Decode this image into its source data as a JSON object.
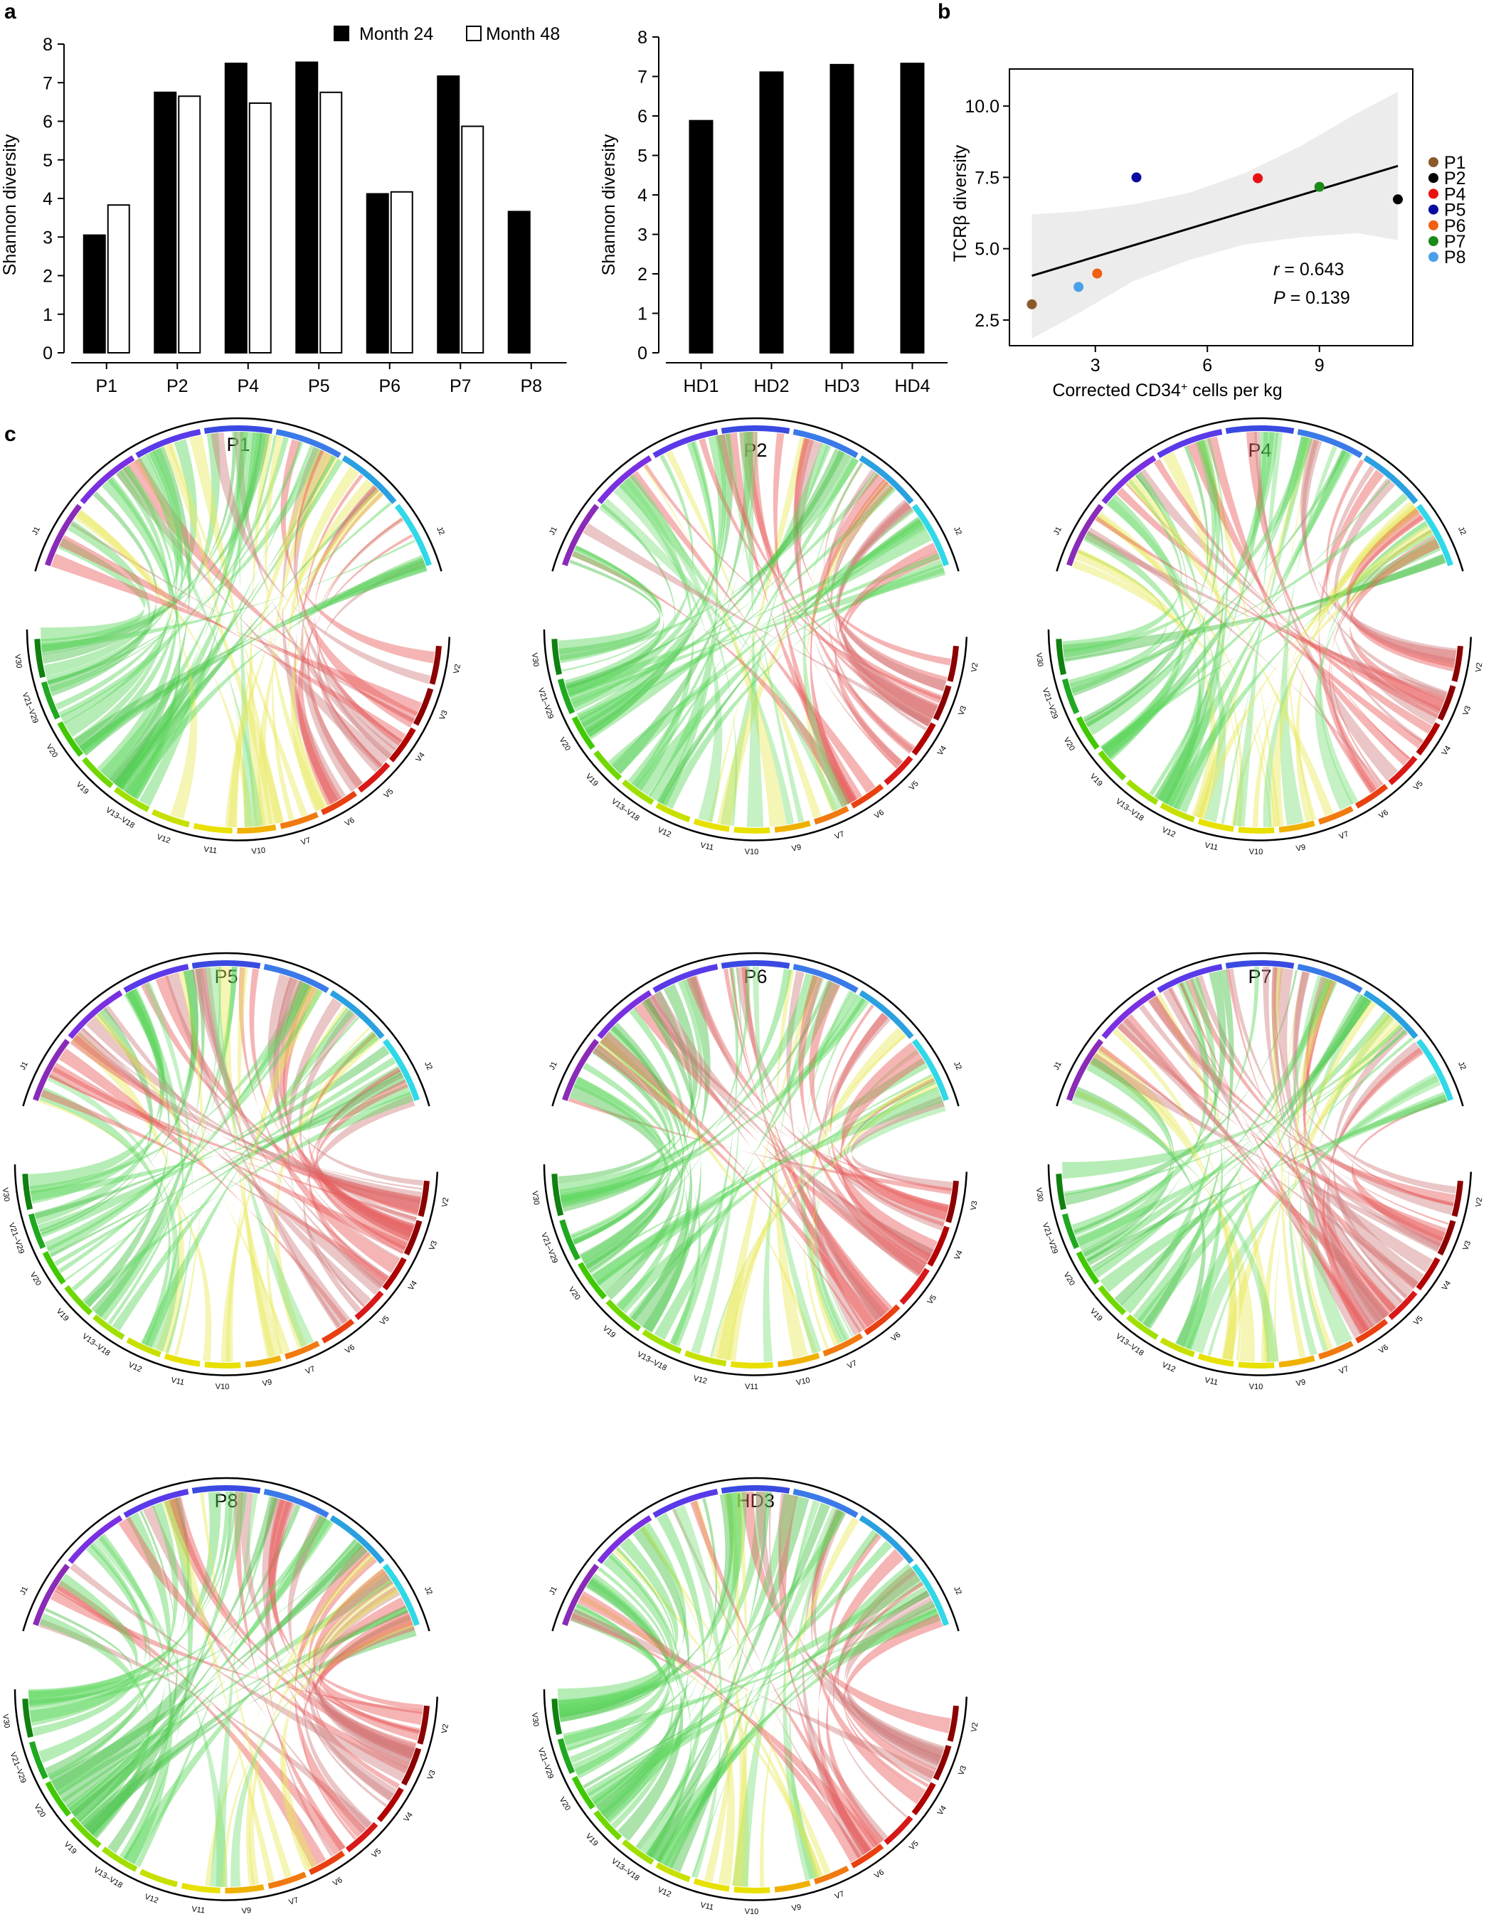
{
  "panel_labels": {
    "a": "a",
    "b": "b",
    "c": "c"
  },
  "colors": {
    "month24": "#000000",
    "month48": "#ffffff",
    "ribbon_palette": [
      "#5ed65e",
      "#7fe07f",
      "#e85a5a",
      "#f08070",
      "#e8e85a",
      "#f5c45a",
      "#44c044",
      "#d08080"
    ],
    "j_segments": [
      "#8a2bb8",
      "#7a30e0",
      "#5a3ae8",
      "#3a4ae0",
      "#3a7ae8",
      "#2aa0e0",
      "#30d8e8"
    ],
    "v_segments": [
      "#8b0000",
      "#b00000",
      "#d81818",
      "#e84010",
      "#f07a10",
      "#f0b000",
      "#e8e000",
      "#c8e000",
      "#a0e000",
      "#70d800",
      "#40c800",
      "#20a820",
      "#108010"
    ],
    "scatter": {
      "P1": "#8b5a2b",
      "P2": "#000000",
      "P4": "#e81010",
      "P5": "#0a0aa0",
      "P6": "#f06010",
      "P7": "#1a8a1a",
      "P8": "#4aa0e8"
    }
  },
  "chart_data": [
    {
      "id": "a-left",
      "type": "bar",
      "title": "",
      "xlabel": "",
      "ylabel": "Shannon diversity",
      "ylim": [
        0,
        8
      ],
      "yticks": [
        "0",
        "1",
        "2",
        "3",
        "4",
        "5",
        "6",
        "7",
        "8"
      ],
      "categories": [
        "P1",
        "P2",
        "P4",
        "P5",
        "P6",
        "P7",
        "P8"
      ],
      "legend": {
        "placement": "top-right"
      },
      "series": [
        {
          "name": "Month 24",
          "values": [
            3.05,
            6.75,
            7.5,
            7.53,
            4.12,
            7.17,
            3.66
          ]
        },
        {
          "name": "Month 48",
          "values": [
            3.83,
            6.65,
            6.47,
            6.75,
            4.17,
            5.87,
            null
          ]
        }
      ]
    },
    {
      "id": "a-right",
      "type": "bar",
      "title": "",
      "xlabel": "",
      "ylabel": "Shannon diversity",
      "ylim": [
        0,
        8
      ],
      "yticks": [
        "0",
        "1",
        "2",
        "3",
        "4",
        "5",
        "6",
        "7",
        "8"
      ],
      "categories": [
        "HD1",
        "HD2",
        "HD3",
        "HD4"
      ],
      "series": [
        {
          "name": "Month 24",
          "values": [
            5.88,
            7.11,
            7.3,
            7.33
          ]
        }
      ]
    },
    {
      "id": "b",
      "type": "scatter",
      "title": "",
      "xlabel_main": "Corrected CD34",
      "xlabel_sup": "+",
      "xlabel_rest": " cells per kg",
      "ylabel": "TCRβ diversity",
      "xlim": [
        0.7,
        11.5
      ],
      "ylim": [
        1.6,
        11.3
      ],
      "xticks": [
        {
          "v": 3,
          "label": "3"
        },
        {
          "v": 6,
          "label": "6"
        },
        {
          "v": 9,
          "label": "9"
        }
      ],
      "yticks": [
        {
          "v": 2.5,
          "label": "2.5"
        },
        {
          "v": 5.0,
          "label": "5.0"
        },
        {
          "v": 7.5,
          "label": "7.5"
        },
        {
          "v": 10.0,
          "label": "10.0"
        }
      ],
      "points": [
        {
          "name": "P1",
          "x": 1.3,
          "y": 3.05
        },
        {
          "name": "P2",
          "x": 11.1,
          "y": 6.73
        },
        {
          "name": "P4",
          "x": 7.35,
          "y": 7.47
        },
        {
          "name": "P5",
          "x": 4.1,
          "y": 7.5
        },
        {
          "name": "P6",
          "x": 3.05,
          "y": 4.13
        },
        {
          "name": "P7",
          "x": 9.0,
          "y": 7.17
        },
        {
          "name": "P8",
          "x": 2.55,
          "y": 3.66
        }
      ],
      "fit": {
        "x": [
          1.3,
          11.1
        ],
        "y": [
          4.05,
          7.9
        ]
      },
      "band": {
        "x": [
          1.3,
          2.5,
          4.0,
          5.5,
          7.0,
          8.5,
          10.0,
          11.1
        ],
        "upper": [
          6.2,
          6.3,
          6.55,
          6.95,
          7.65,
          8.6,
          9.75,
          10.5
        ],
        "lower": [
          1.85,
          2.7,
          3.85,
          4.6,
          5.15,
          5.4,
          5.55,
          5.3
        ]
      },
      "stat_r_label": "r",
      "stat_r_value": " = 0.643",
      "stat_p_label": "P",
      "stat_p_value": " = 0.139",
      "legend": [
        "P1",
        "P2",
        "P4",
        "P5",
        "P6",
        "P7",
        "P8"
      ]
    }
  ],
  "chord": {
    "j_label_left": "J1",
    "j_label_right": "J2",
    "diagrams": [
      {
        "title": "P1",
        "v_labels": [
          "V2",
          "V3",
          "V4",
          "V5",
          "V6",
          "V7",
          "V10",
          "V11",
          "V12",
          "V13–V18",
          "V19",
          "V20",
          "V21–V29",
          "V30"
        ]
      },
      {
        "title": "P2",
        "v_labels": [
          "V2",
          "V3",
          "V4",
          "V5",
          "V6",
          "V7",
          "V9",
          "V10",
          "V11",
          "V12",
          "V13–V18",
          "V19",
          "V20",
          "V21–V29",
          "V30"
        ]
      },
      {
        "title": "P4",
        "v_labels": [
          "V2",
          "V3",
          "V4",
          "V5",
          "V6",
          "V7",
          "V9",
          "V10",
          "V11",
          "V12",
          "V13–V18",
          "V19",
          "V20",
          "V21–V29",
          "V30"
        ]
      },
      {
        "title": "P5",
        "v_labels": [
          "V2",
          "V3",
          "V4",
          "V5",
          "V6",
          "V7",
          "V9",
          "V10",
          "V11",
          "V12",
          "V13–V18",
          "V19",
          "V20",
          "V21–V29",
          "V30"
        ]
      },
      {
        "title": "P6",
        "v_labels": [
          "V3",
          "V4",
          "V5",
          "V6",
          "V7",
          "V10",
          "V11",
          "V12",
          "V13–V18",
          "V19",
          "V20",
          "V21–V29",
          "V30"
        ]
      },
      {
        "title": "P7",
        "v_labels": [
          "V2",
          "V3",
          "V4",
          "V5",
          "V6",
          "V7",
          "V9",
          "V10",
          "V11",
          "V12",
          "V13–V18",
          "V19",
          "V20",
          "V21–V29",
          "V30"
        ]
      },
      {
        "title": "P8",
        "v_labels": [
          "V2",
          "V3",
          "V4",
          "V5",
          "V6",
          "V7",
          "V9",
          "V11",
          "V12",
          "V13–V18",
          "V19",
          "V20",
          "V21–V29",
          "V30"
        ]
      },
      {
        "title": "HD3",
        "v_labels": [
          "V2",
          "V3",
          "V4",
          "V5",
          "V6",
          "V7",
          "V9",
          "V10",
          "V11",
          "V12",
          "V13–V18",
          "V19",
          "V20",
          "V21–V29",
          "V30"
        ]
      }
    ]
  }
}
